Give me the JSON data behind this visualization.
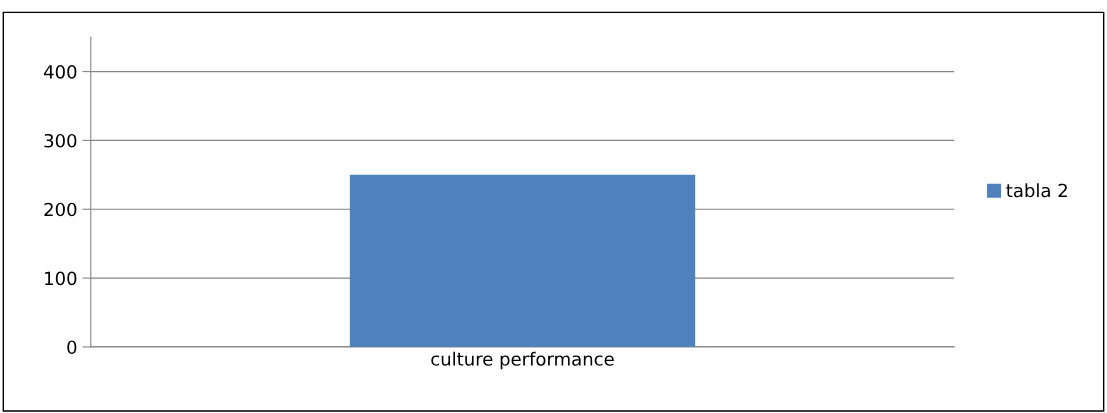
{
  "chart_data": {
    "type": "bar",
    "categories": [
      "culture performance"
    ],
    "series": [
      {
        "name": "tabla 2",
        "color": "#4f81bd",
        "values": [
          250
        ]
      }
    ],
    "ylim": [
      0,
      450
    ],
    "yticks": [
      0,
      100,
      200,
      300,
      400
    ],
    "grid": "y",
    "legend": "right"
  }
}
